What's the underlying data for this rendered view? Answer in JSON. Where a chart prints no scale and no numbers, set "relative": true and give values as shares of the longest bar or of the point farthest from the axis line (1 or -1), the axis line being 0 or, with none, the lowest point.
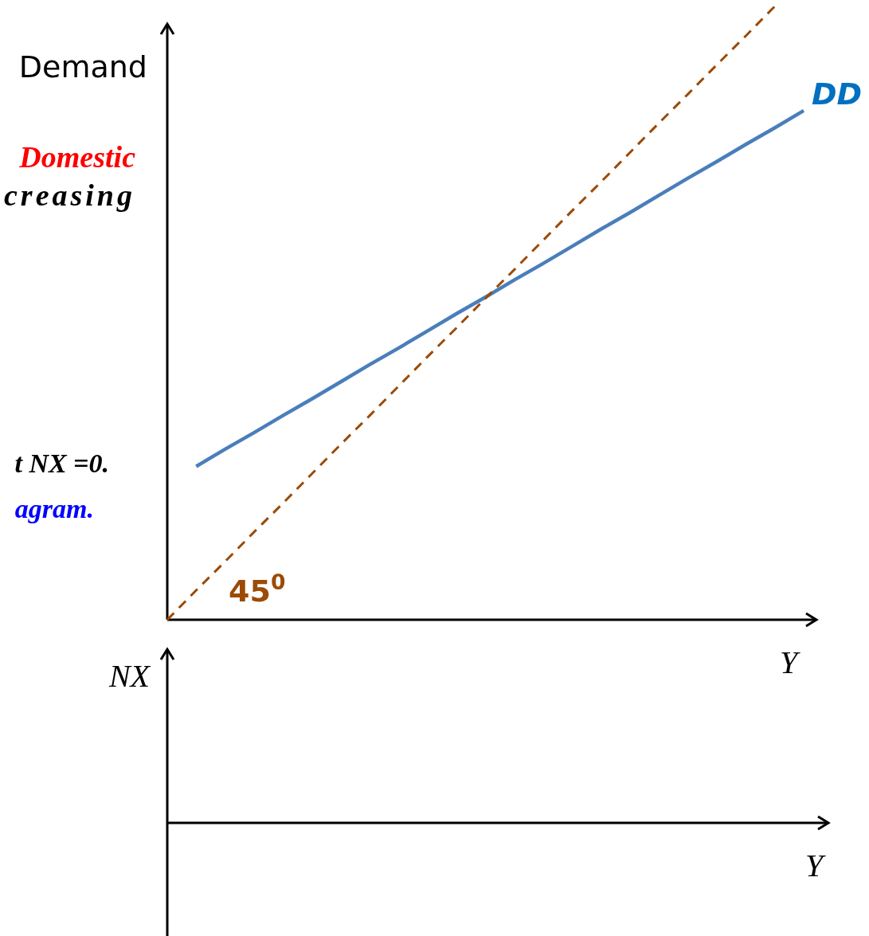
{
  "chart_data": [
    {
      "type": "line",
      "relative": true,
      "ylabel": "Demand",
      "xlabel": "Y",
      "annotations": [
        "Domestic",
        "creasing",
        "t NX =0.",
        "agram.",
        "45$^{0}$"
      ],
      "categories": [
        null,
        null,
        null,
        null,
        null,
        null,
        null,
        null,
        null,
        null,
        null,
        null,
        null,
        null,
        null,
        null,
        null,
        null,
        null,
        null,
        null,
        null,
        null
      ],
      "series": [
        {
          "name": "DD",
          "color": "#4a7ebb",
          "values": [
            null,
            0.25,
            0.278,
            0.305,
            0.333,
            0.36,
            0.388,
            0.416,
            0.443,
            0.471,
            0.499,
            0.526,
            0.554,
            0.581,
            0.609,
            0.637,
            0.664,
            0.692,
            0.72,
            0.747,
            0.775,
            0.802,
            0.83
          ]
        },
        {
          "color": "#9c4a06",
          "line_style": "dashed",
          "values": [
            0,
            0.048,
            0.095,
            0.143,
            0.19,
            0.238,
            0.286,
            0.333,
            0.381,
            0.429,
            0.476,
            0.524,
            0.571,
            0.619,
            0.667,
            0.714,
            0.762,
            0.81,
            0.857,
            0.905,
            0.952,
            1.0,
            null
          ]
        }
      ]
    },
    {
      "type": "other",
      "ylabel": "NX",
      "xlabel": "Y"
    }
  ]
}
